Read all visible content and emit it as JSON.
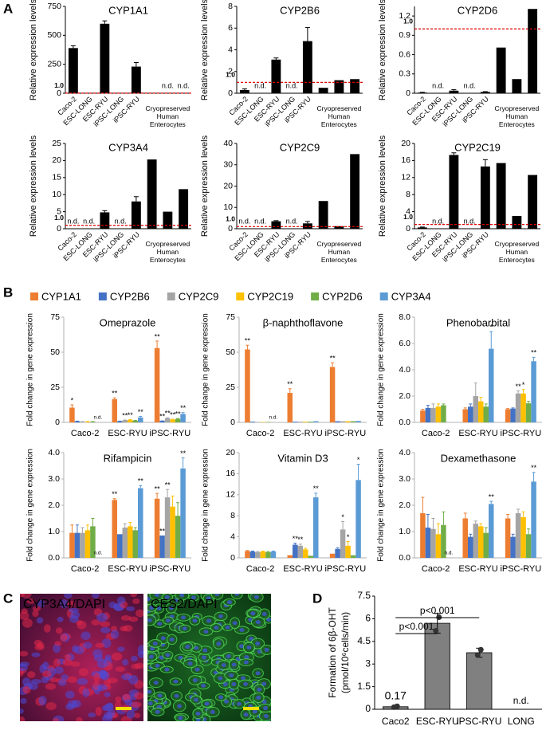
{
  "chart_data": [
    {
      "type": "bar",
      "label": "A",
      "ylabel": "Relative expression levels",
      "color": "#000000",
      "categories": [
        "Caco-2",
        "ESC-LONG",
        "ESC-RYU",
        "iPSC-LONG",
        "iPSC-RYU",
        null,
        "Cryopreserved Human Enterocytes",
        null
      ],
      "reference_line": {
        "value": 1,
        "label": "1.0",
        "color": "#e00000"
      },
      "panels": [
        {
          "title": "CYP1A1",
          "ylim": [
            0,
            750
          ],
          "yticks": [
            0,
            250,
            500,
            750
          ],
          "values": [
            390,
            2,
            600,
            2,
            230,
            3,
            null,
            null
          ],
          "errors": [
            20,
            null,
            25,
            null,
            35,
            null,
            null,
            null
          ],
          "value_labels": [
            null,
            null,
            null,
            null,
            null,
            null,
            "n.d.",
            "n.d."
          ]
        },
        {
          "title": "CYP2B6",
          "ylim": [
            0,
            8
          ],
          "yticks": [
            0,
            2,
            4,
            6,
            8
          ],
          "values": [
            0.3,
            null,
            3.1,
            null,
            4.8,
            0.5,
            1.2,
            1.3
          ],
          "errors": [
            0.1,
            null,
            0.15,
            null,
            1.25,
            null,
            null,
            null
          ],
          "value_labels": [
            null,
            "n.d.",
            null,
            "n.d.",
            null,
            null,
            null,
            null
          ]
        },
        {
          "title": "CYP2D6",
          "ylim": [
            0,
            1.35
          ],
          "yticks": [
            0,
            0.3,
            0.6,
            0.9,
            1.2
          ],
          "values": [
            0.01,
            null,
            0.04,
            null,
            0.02,
            0.71,
            0.22,
            1.31
          ],
          "errors": [
            0.005,
            null,
            0.015,
            null,
            0.005,
            null,
            null,
            null
          ],
          "value_labels": [
            null,
            "n.d.",
            null,
            "n.d.",
            null,
            null,
            null,
            null
          ]
        },
        {
          "title": "CYP3A4",
          "ylim": [
            0,
            25
          ],
          "yticks": [
            0,
            5,
            10,
            15,
            20,
            25
          ],
          "values": [
            null,
            null,
            4.8,
            null,
            8,
            20.3,
            5,
            11.6
          ],
          "errors": [
            null,
            null,
            0.5,
            null,
            1.4,
            null,
            null,
            null
          ],
          "value_labels": [
            "n.d.",
            "n.d.",
            null,
            "n.d.",
            null,
            null,
            null,
            null
          ]
        },
        {
          "title": "CYP2C9",
          "ylim": [
            0,
            40
          ],
          "yticks": [
            0,
            10,
            20,
            30,
            40
          ],
          "values": [
            null,
            null,
            3.5,
            null,
            2.5,
            13,
            1.2,
            35
          ],
          "errors": [
            null,
            null,
            0.3,
            null,
            0.9,
            null,
            null,
            null
          ],
          "value_labels": [
            "n.d.",
            "n.d.",
            null,
            "n.d.",
            null,
            null,
            null,
            null
          ]
        },
        {
          "title": "CYP2C19",
          "ylim": [
            0,
            20
          ],
          "yticks": [
            0,
            4,
            8,
            12,
            16,
            20
          ],
          "values": [
            0.3,
            null,
            17.3,
            null,
            14.6,
            15.4,
            3,
            12.6
          ],
          "errors": [
            0.1,
            null,
            0.5,
            null,
            1.6,
            null,
            null,
            null
          ],
          "value_labels": [
            null,
            "n.d.",
            null,
            "n.d.",
            null,
            null,
            null,
            null
          ]
        }
      ]
    },
    {
      "type": "grouped-bar",
      "label": "B",
      "ylabel": "Fold change in gene expression",
      "categories": [
        "Caco-2",
        "ESC-RYU",
        "iPSC-RYU"
      ],
      "series": [
        {
          "name": "CYP1A1",
          "color": "#ed7d31"
        },
        {
          "name": "CYP2B6",
          "color": "#4472c4"
        },
        {
          "name": "CYP2C9",
          "color": "#a5a5a5"
        },
        {
          "name": "CYP2C19",
          "color": "#ffc000"
        },
        {
          "name": "CYP2D6",
          "color": "#70ad47"
        },
        {
          "name": "CYP3A4",
          "color": "#5b9bd5"
        }
      ],
      "panels": [
        {
          "title": "Omeprazole",
          "ylim": [
            0,
            75
          ],
          "yticks": [
            0,
            25,
            50,
            75
          ],
          "values": [
            [
              10.5,
              16.5,
              53
            ],
            [
              0.8,
              0.8,
              1
            ],
            [
              0.5,
              1.5,
              3
            ],
            [
              0.5,
              1.8,
              2
            ],
            [
              0.5,
              1.2,
              2.5
            ],
            [
              null,
              3.5,
              6
            ]
          ],
          "errors": [
            [
              2,
              1,
              5
            ],
            [
              0.1,
              0.1,
              0.1
            ],
            [
              0.1,
              0.2,
              0.3
            ],
            [
              0.1,
              0.2,
              0.3
            ],
            [
              0.1,
              0.2,
              0.3
            ],
            [
              null,
              0.8,
              1
            ]
          ],
          "annotations": [
            [
              "*",
              "**",
              "**"
            ],
            [
              null,
              null,
              "**"
            ],
            [
              null,
              "**",
              "**"
            ],
            [
              null,
              "**",
              "**"
            ],
            [
              null,
              null,
              "**"
            ],
            [
              "n.d.",
              "**",
              "**"
            ]
          ]
        },
        {
          "title": "β-naphthoflavone",
          "ylim": [
            0,
            75
          ],
          "yticks": [
            0,
            25,
            50,
            75
          ],
          "values": [
            [
              52,
              21,
              39.5
            ],
            [
              0.5,
              0.5,
              0.8
            ],
            [
              0.3,
              0.5,
              0.8
            ],
            [
              0.3,
              0.5,
              0.8
            ],
            [
              0.3,
              0.5,
              0.8
            ],
            [
              null,
              0.8,
              1
            ]
          ],
          "errors": [
            [
              3,
              3,
              3
            ],
            [
              null,
              null,
              null
            ],
            [
              null,
              null,
              null
            ],
            [
              null,
              null,
              null
            ],
            [
              null,
              null,
              null
            ],
            [
              null,
              null,
              null
            ]
          ],
          "annotations": [
            [
              "**",
              "**",
              "**"
            ],
            [
              null,
              null,
              null
            ],
            [
              null,
              null,
              null
            ],
            [
              null,
              null,
              null
            ],
            [
              null,
              null,
              null
            ],
            [
              "n.d.",
              null,
              null
            ]
          ]
        },
        {
          "title": "Phenobarbital",
          "ylim": [
            0,
            8
          ],
          "yticks": [
            {
              "value": 0,
              "label": "0.0"
            },
            {
              "value": 2,
              "label": "2.0"
            },
            {
              "value": 4,
              "label": "4.0"
            },
            {
              "value": 6,
              "label": "6.0"
            },
            {
              "value": 8,
              "label": "8.0"
            }
          ],
          "values": [
            [
              0.9,
              1,
              1
            ],
            [
              1.1,
              1.2,
              1.05
            ],
            [
              1.1,
              2,
              2.2
            ],
            [
              1.2,
              1.6,
              2.2
            ],
            [
              1.3,
              1.2,
              1.45
            ],
            [
              null,
              5.6,
              4.65
            ]
          ],
          "errors": [
            [
              0.1,
              0.1,
              0.05
            ],
            [
              0.2,
              0.2,
              0.05
            ],
            [
              0.3,
              1,
              0.2
            ],
            [
              0.2,
              0.3,
              0.3
            ],
            [
              0.1,
              0.2,
              0.15
            ],
            [
              null,
              1.3,
              0.3
            ]
          ],
          "annotations": [
            [
              null,
              null,
              null
            ],
            [
              null,
              null,
              null
            ],
            [
              null,
              null,
              "**"
            ],
            [
              null,
              null,
              "*"
            ],
            [
              null,
              null,
              null
            ],
            [
              null,
              "*",
              "**"
            ]
          ]
        },
        {
          "title": "Rifampicin",
          "ylim": [
            0,
            4
          ],
          "yticks": [
            {
              "value": 0,
              "label": "0.0"
            },
            {
              "value": 1,
              "label": "1.0"
            },
            {
              "value": 2,
              "label": "2.0"
            },
            {
              "value": 3,
              "label": "3.0"
            },
            {
              "value": 4,
              "label": "4.0"
            }
          ],
          "values": [
            [
              0.95,
              2.2,
              2.25
            ],
            [
              0.95,
              0.9,
              0.85
            ],
            [
              0.95,
              1.15,
              2.3
            ],
            [
              1.05,
              1.2,
              1.95
            ],
            [
              1.2,
              1.05,
              1.6
            ],
            [
              null,
              2.65,
              3.4
            ]
          ],
          "errors": [
            [
              0.3,
              0.05,
              0.2
            ],
            [
              0.3,
              null,
              null
            ],
            [
              0.2,
              0.15,
              0.3
            ],
            [
              0.2,
              0.15,
              0.4
            ],
            [
              0.3,
              0.1,
              0.5
            ],
            [
              null,
              0.1,
              0.4
            ]
          ],
          "annotations": [
            [
              null,
              "**",
              "**"
            ],
            [
              null,
              null,
              "**"
            ],
            [
              null,
              null,
              "**"
            ],
            [
              null,
              null,
              null
            ],
            [
              null,
              null,
              null
            ],
            [
              "n.d.",
              "**",
              "**"
            ]
          ]
        },
        {
          "title": "Vitamin D3",
          "ylim": [
            0,
            20
          ],
          "yticks": [
            0,
            4,
            8,
            12,
            16,
            20
          ],
          "values": [
            [
              1.3,
              0.5,
              0.8
            ],
            [
              1.2,
              2.5,
              1.7
            ],
            [
              1.1,
              2.3,
              5.4
            ],
            [
              1.2,
              1.6,
              2.3
            ],
            [
              1.1,
              0.4,
              0.5
            ],
            [
              1.2,
              11.5,
              14.8
            ]
          ],
          "errors": [
            [
              0.1,
              null,
              null
            ],
            [
              0.1,
              0.3,
              0.2
            ],
            [
              0.1,
              0.3,
              1.5
            ],
            [
              0.1,
              0.2,
              0.8
            ],
            [
              0.1,
              null,
              null
            ],
            [
              0.1,
              0.8,
              3
            ]
          ],
          "annotations": [
            [
              null,
              null,
              null
            ],
            [
              null,
              "**",
              null
            ],
            [
              null,
              "**",
              "*"
            ],
            [
              null,
              null,
              "*"
            ],
            [
              null,
              null,
              null
            ],
            [
              null,
              "**",
              "*"
            ]
          ]
        },
        {
          "title": "Dexamethasone",
          "ylim": [
            0,
            4
          ],
          "yticks": [
            {
              "value": 0,
              "label": "0.0"
            },
            {
              "value": 1,
              "label": "1.0"
            },
            {
              "value": 2,
              "label": "2.0"
            },
            {
              "value": 3,
              "label": "3.0"
            },
            {
              "value": 4,
              "label": "4.0"
            }
          ],
          "values": [
            [
              1.7,
              1.5,
              1.5
            ],
            [
              1.15,
              0.8,
              0.8
            ],
            [
              1.1,
              1.3,
              1.7
            ],
            [
              0.9,
              1.2,
              1.55
            ],
            [
              1.25,
              0.95,
              0.9
            ],
            [
              null,
              2.05,
              2.9
            ]
          ],
          "errors": [
            [
              0.6,
              0.2,
              0.15
            ],
            [
              0.5,
              0.1,
              0.1
            ],
            [
              0.4,
              0.1,
              0.15
            ],
            [
              0.4,
              0.1,
              0.2
            ],
            [
              0.5,
              0.2,
              0.2
            ],
            [
              null,
              0.1,
              0.35
            ]
          ],
          "annotations": [
            [
              null,
              null,
              null
            ],
            [
              null,
              null,
              null
            ],
            [
              null,
              null,
              null
            ],
            [
              null,
              null,
              null
            ],
            [
              null,
              null,
              null
            ],
            [
              "n.d.",
              "**",
              "**"
            ]
          ]
        }
      ]
    },
    {
      "type": "bar",
      "label": "D",
      "ylabel": [
        "Formation of 6β-OHT",
        "(pmol/10⁶cells/min)"
      ],
      "color": "#808080",
      "categories": [
        "Caco2",
        "ESC-RYU",
        "iPSC-RYU",
        "LONG"
      ],
      "values": [
        0.17,
        5.7,
        3.75,
        null
      ],
      "errors": [
        0.05,
        0.65,
        0.3,
        null
      ],
      "value_labels": [
        "0.17",
        null,
        null,
        "n.d."
      ],
      "points": [
        [
          0.14,
          0.2
        ],
        [
          5.2,
          6.1
        ],
        [
          3.6,
          3.95
        ],
        null
      ],
      "ylim": [
        0,
        7.5
      ],
      "yticks": [
        0,
        1.5,
        3,
        4.5,
        6,
        7.5
      ],
      "comparisons": [
        {
          "pair": [
            0,
            1
          ],
          "label": "p<0.001"
        },
        {
          "pair": [
            0,
            2
          ],
          "label": "p<0.001"
        }
      ]
    }
  ],
  "panel_c": {
    "label": "C",
    "images": [
      {
        "labels": [
          {
            "text": "CYP3A4",
            "color": "#e8332d"
          },
          {
            "text": "/DAPI",
            "color": "#5a78f0"
          }
        ]
      },
      {
        "labels": [
          {
            "text": "CES2",
            "color": "#3cc84a"
          },
          {
            "text": "/DAPI",
            "color": "#5a78f0"
          }
        ]
      }
    ]
  }
}
